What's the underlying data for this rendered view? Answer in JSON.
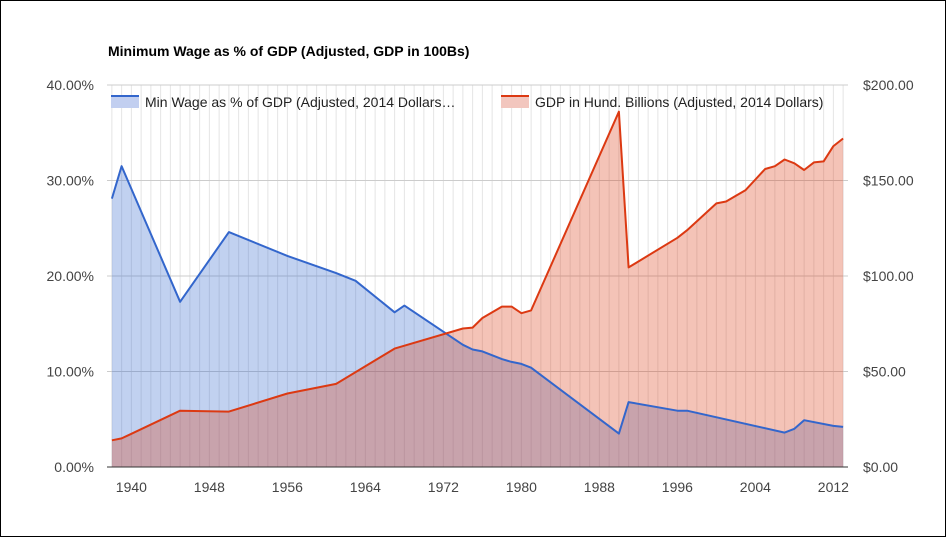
{
  "chart_data": {
    "type": "area",
    "title": "Minimum Wage as % of GDP (Adjusted, GDP in 100Bs)",
    "xlabel": "",
    "ylabel_left": "",
    "ylabel_right": "",
    "x_ticks": [
      "1940",
      "1948",
      "1956",
      "1964",
      "1972",
      "1980",
      "1988",
      "1996",
      "2004",
      "2012"
    ],
    "y_left_ticks": [
      "0.00%",
      "10.00%",
      "20.00%",
      "30.00%",
      "40.00%"
    ],
    "y_right_ticks": [
      "$0.00",
      "$50.00",
      "$100.00",
      "$150.00",
      "$200.00"
    ],
    "xlim": [
      1937.5,
      2013.5
    ],
    "ylim_left": [
      0,
      40
    ],
    "ylim_right": [
      0,
      200
    ],
    "grid": true,
    "legend_position": "top",
    "series": [
      {
        "name": "Min Wage as % of GDP (Adjusted, 2014 Dollars…",
        "axis": "left",
        "color": "#3366cc",
        "fill": "#c2cff0",
        "x": [
          1938,
          1939,
          1945,
          1950,
          1956,
          1961,
          1963,
          1967,
          1968,
          1974,
          1975,
          1976,
          1978,
          1979,
          1980,
          1981,
          1990,
          1991,
          1996,
          1997,
          2007,
          2008,
          2009,
          2012,
          2013
        ],
        "y": [
          28.1,
          31.5,
          17.3,
          24.6,
          22.1,
          20.3,
          19.5,
          16.2,
          16.9,
          12.8,
          12.3,
          12.1,
          11.3,
          11.0,
          10.8,
          10.4,
          3.5,
          6.8,
          5.9,
          5.9,
          3.6,
          4.0,
          4.9,
          4.3,
          4.2
        ]
      },
      {
        "name": "GDP in Hund. Billions (Adjusted, 2014 Dollars)",
        "axis": "right",
        "color": "#dc3912",
        "fill": "#f2c6be",
        "x": [
          1938,
          1939,
          1945,
          1950,
          1956,
          1961,
          1967,
          1968,
          1974,
          1975,
          1976,
          1978,
          1979,
          1980,
          1981,
          1990,
          1991,
          1996,
          1997,
          2000,
          2001,
          2002,
          2003,
          2004,
          2005,
          2006,
          2007,
          2008,
          2009,
          2010,
          2011,
          2012,
          2013
        ],
        "y": [
          14,
          15,
          29.5,
          29,
          38.5,
          43.5,
          62,
          63.5,
          72.5,
          73,
          78,
          84,
          84,
          80.5,
          82,
          186,
          104.5,
          120,
          124,
          138,
          139,
          142,
          145,
          150.5,
          156,
          157.5,
          161,
          159,
          155.5,
          159.5,
          160,
          168,
          172
        ]
      }
    ]
  }
}
